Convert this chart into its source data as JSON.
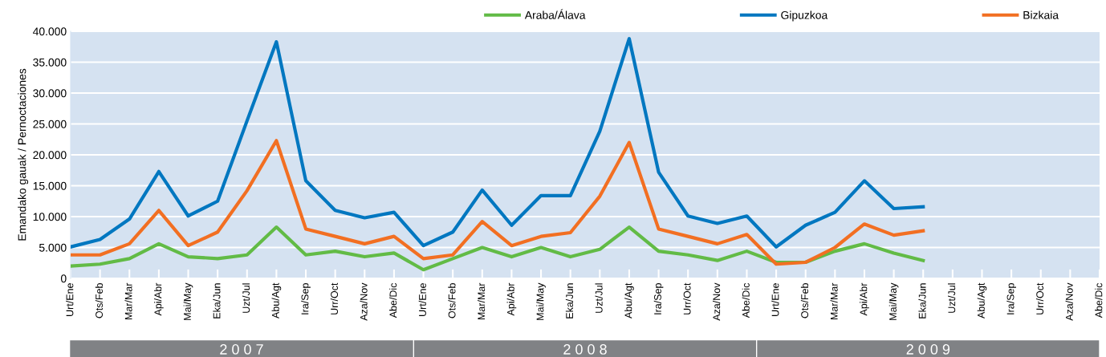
{
  "chart_data": {
    "type": "line",
    "ylabel": "Emandako gauak / Pernoctaciones",
    "categories": [
      "Urt/Ene",
      "Ots/Feb",
      "Mar/Mar",
      "Api/Abr",
      "Mai/May",
      "Eka/Jun",
      "Uzt/Jul",
      "Abu/Agt",
      "Ira/Sep",
      "Urr/Oct",
      "Aza/Nov",
      "Abe/Dic",
      "Urt/Ene",
      "Ots/Feb",
      "Mar/Mar",
      "Api/Abr",
      "Mai/May",
      "Eka/Jun",
      "Uzt/Jul",
      "Abu/Agt",
      "Ira/Sep",
      "Urr/Oct",
      "Aza/Nov",
      "Abe/Dic",
      "Urt/Ene",
      "Ots/Feb",
      "Mar/Mar",
      "Api/Abr",
      "Mai/May",
      "Eka/Jun",
      "Uzt/Jul",
      "Abu/Agt",
      "Ira/Sep",
      "Urr/Oct",
      "Aza/Nov",
      "Abe/Dic"
    ],
    "series": [
      {
        "name": "Araba/Álava",
        "color": "#62bb46",
        "values": [
          2000,
          2300,
          3200,
          5600,
          3500,
          3200,
          3800,
          8300,
          3800,
          4400,
          3500,
          4100,
          1400,
          3200,
          5000,
          3500,
          5000,
          3500,
          4700,
          8300,
          4400,
          3800,
          2900,
          4400,
          2600,
          2600,
          4400,
          5600,
          4100,
          2900,
          null,
          null,
          null,
          null,
          null,
          null
        ]
      },
      {
        "name": "Gipuzkoa",
        "color": "#0077c0",
        "values": [
          5100,
          6300,
          9600,
          17300,
          10100,
          12500,
          25500,
          38300,
          15800,
          11000,
          9800,
          10700,
          5300,
          7500,
          14300,
          8600,
          13400,
          13400,
          23800,
          38800,
          17200,
          10100,
          8900,
          10100,
          5100,
          8600,
          10700,
          15800,
          11300,
          11600,
          null,
          null,
          null,
          null,
          null,
          null
        ]
      },
      {
        "name": "Bizkaia",
        "color": "#f26f22",
        "values": [
          3800,
          3800,
          5600,
          11000,
          5300,
          7500,
          14200,
          22300,
          8000,
          6800,
          5600,
          6800,
          3200,
          3800,
          9200,
          5300,
          6800,
          7400,
          13300,
          22000,
          8000,
          6800,
          5600,
          7100,
          2300,
          2600,
          5000,
          8800,
          7000,
          7700,
          null,
          null,
          null,
          null,
          null,
          null
        ]
      }
    ],
    "ylim": [
      0,
      40000
    ],
    "yticks": [
      0,
      {
        "value": 5000,
        "label": "5.000"
      },
      {
        "value": 10000,
        "label": "10.000"
      },
      {
        "value": 15000,
        "label": "15.000"
      },
      {
        "value": 20000,
        "label": "20.000"
      },
      {
        "value": 25000,
        "label": "25.000"
      },
      {
        "value": 30000,
        "label": "30.000"
      },
      {
        "value": 35000,
        "label": "35.000"
      },
      {
        "value": 40000,
        "label": "40.000"
      }
    ],
    "grid": "y",
    "legend": "top right",
    "marker": "none",
    "line_style": "solid",
    "annotations": [
      "2 0 0 7",
      "2 0 0 8",
      "2 0 0 9"
    ]
  }
}
